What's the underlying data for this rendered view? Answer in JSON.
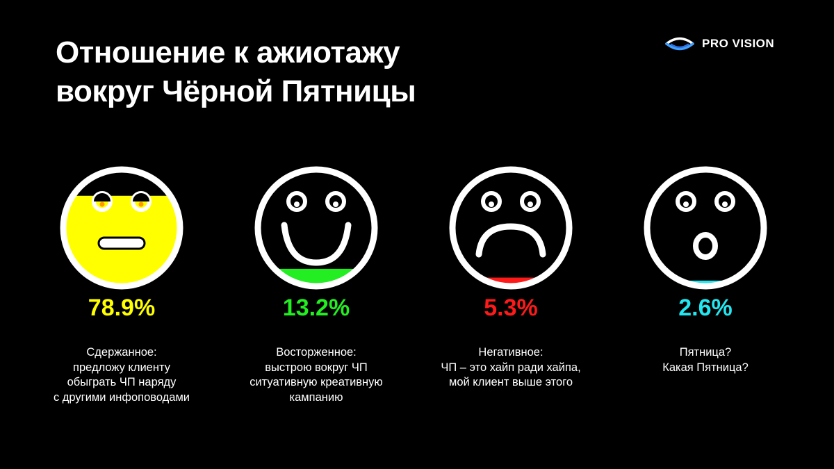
{
  "title": {
    "line1": "Отношение к ажиотажу",
    "line2": "вокруг Чёрной Пятницы"
  },
  "logo": {
    "text": "PRO VISION",
    "icon": "eye-icon",
    "color": "#3fa0ff"
  },
  "chart_data": {
    "type": "bar",
    "title": "Отношение к ажиотажу вокруг Чёрной Пятницы",
    "unit": "%",
    "categories": [
      "Сдержанное: предложу клиенту обыграть ЧП наряду с другими инфоповодами",
      "Восторженное: выстрою вокруг ЧП ситуативную креативную кампанию",
      "Негативное: ЧП – это хайп ради хайпа, мой клиент выше этого",
      "Пятница? Какая Пятница?"
    ],
    "values": [
      78.9,
      13.2,
      5.3,
      2.6
    ]
  },
  "items": [
    {
      "value": 78.9,
      "value_label": "78.9%",
      "color": "#ffff00",
      "face": "neutral",
      "desc_lines": [
        "Сдержанное:",
        "предложу клиенту",
        "обыграть ЧП наряду",
        "с другими инфоповодами"
      ]
    },
    {
      "value": 13.2,
      "value_label": "13.2%",
      "color": "#22ee22",
      "face": "happy",
      "desc_lines": [
        "Восторженное:",
        "выстрою вокруг ЧП",
        "ситуативную креативную",
        "кампанию"
      ]
    },
    {
      "value": 5.3,
      "value_label": "5.3%",
      "color": "#ff1a1a",
      "face": "sad",
      "desc_lines": [
        "Негативное:",
        "ЧП – это хайп ради хайпа,",
        "мой клиент выше этого"
      ]
    },
    {
      "value": 2.6,
      "value_label": "2.6%",
      "color": "#22e6f0",
      "face": "surprised",
      "desc_lines": [
        "Пятница?",
        "Какая Пятница?"
      ]
    }
  ]
}
